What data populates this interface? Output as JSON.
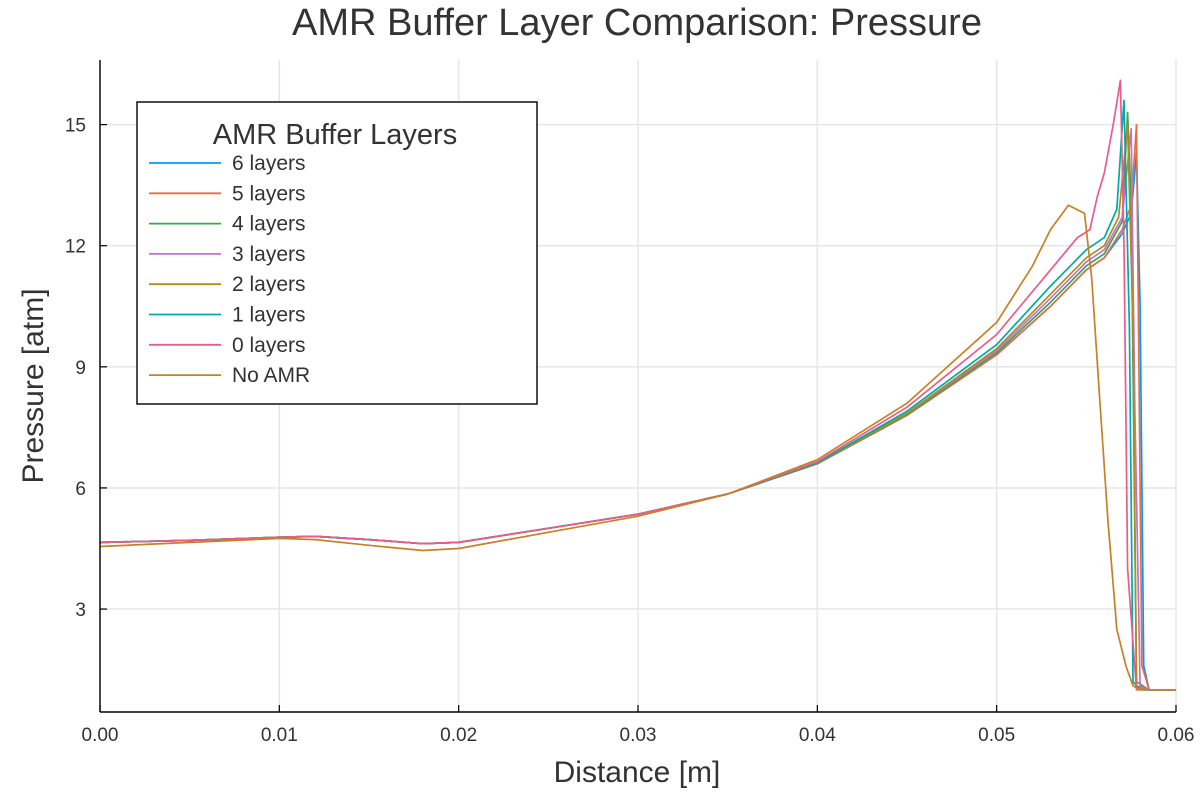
{
  "chart_data": {
    "type": "line",
    "title": "AMR Buffer Layer Comparison: Pressure",
    "xlabel": "Distance [m]",
    "ylabel": "Pressure [atm]",
    "xlim": [
      0.0,
      0.06
    ],
    "ylim": [
      0.45,
      16.6
    ],
    "xticks": [
      0.0,
      0.01,
      0.02,
      0.03,
      0.04,
      0.05,
      0.06
    ],
    "xtick_labels": [
      "0.00",
      "0.01",
      "0.02",
      "0.03",
      "0.04",
      "0.05",
      "0.06"
    ],
    "yticks": [
      3,
      6,
      9,
      12,
      15
    ],
    "ytick_labels": [
      "3",
      "6",
      "9",
      "12",
      "15"
    ],
    "grid": true,
    "legend": {
      "title": "AMR Buffer Layers",
      "placement": "top-left"
    },
    "series": [
      {
        "name": "6 layers",
        "color": "#009AFA",
        "x": [
          0.0,
          0.005,
          0.01,
          0.012,
          0.015,
          0.018,
          0.02,
          0.025,
          0.03,
          0.035,
          0.04,
          0.045,
          0.05,
          0.053,
          0.055,
          0.056,
          0.057,
          0.0575,
          0.0578,
          0.058,
          0.0582,
          0.0585,
          0.06
        ],
        "y": [
          4.65,
          4.7,
          4.78,
          4.8,
          4.72,
          4.62,
          4.65,
          5.0,
          5.35,
          5.85,
          6.6,
          7.8,
          9.3,
          10.5,
          11.4,
          11.7,
          12.3,
          12.8,
          14.3,
          10.5,
          1.6,
          1.0,
          1.0
        ]
      },
      {
        "name": "5 layers",
        "color": "#E36F47",
        "x": [
          0.0,
          0.005,
          0.01,
          0.012,
          0.015,
          0.018,
          0.02,
          0.025,
          0.03,
          0.035,
          0.04,
          0.045,
          0.05,
          0.053,
          0.055,
          0.056,
          0.057,
          0.0575,
          0.0578,
          0.0581,
          0.0585,
          0.06
        ],
        "y": [
          4.65,
          4.7,
          4.78,
          4.8,
          4.72,
          4.62,
          4.65,
          5.0,
          5.35,
          5.85,
          6.6,
          7.8,
          9.3,
          10.5,
          11.4,
          11.7,
          12.4,
          13.0,
          15.0,
          1.6,
          1.0,
          1.0
        ]
      },
      {
        "name": "4 layers",
        "color": "#3EA44E",
        "x": [
          0.0,
          0.005,
          0.01,
          0.012,
          0.015,
          0.018,
          0.02,
          0.025,
          0.03,
          0.035,
          0.04,
          0.045,
          0.05,
          0.053,
          0.055,
          0.056,
          0.057,
          0.0573,
          0.0575,
          0.0578,
          0.0585,
          0.06
        ],
        "y": [
          4.65,
          4.7,
          4.78,
          4.8,
          4.72,
          4.62,
          4.65,
          5.0,
          5.35,
          5.85,
          6.6,
          7.82,
          9.35,
          10.6,
          11.5,
          11.8,
          12.6,
          15.3,
          13.0,
          1.2,
          1.0,
          1.0
        ]
      },
      {
        "name": "3 layers",
        "color": "#C371D2",
        "x": [
          0.0,
          0.005,
          0.01,
          0.012,
          0.015,
          0.018,
          0.02,
          0.025,
          0.03,
          0.035,
          0.04,
          0.045,
          0.05,
          0.053,
          0.055,
          0.056,
          0.057,
          0.0575,
          0.0577,
          0.058,
          0.0585,
          0.06
        ],
        "y": [
          4.65,
          4.7,
          4.78,
          4.8,
          4.72,
          4.62,
          4.65,
          5.0,
          5.35,
          5.85,
          6.6,
          7.85,
          9.4,
          10.7,
          11.6,
          11.9,
          12.7,
          14.9,
          8.0,
          1.1,
          1.0,
          1.0
        ]
      },
      {
        "name": "2 layers",
        "color": "#AC8E18",
        "x": [
          0.0,
          0.005,
          0.01,
          0.012,
          0.015,
          0.018,
          0.02,
          0.025,
          0.03,
          0.035,
          0.04,
          0.045,
          0.05,
          0.053,
          0.055,
          0.056,
          0.0568,
          0.0573,
          0.0576,
          0.0578,
          0.0583,
          0.06
        ],
        "y": [
          4.65,
          4.7,
          4.78,
          4.8,
          4.72,
          4.62,
          4.65,
          5.0,
          5.35,
          5.85,
          6.6,
          7.85,
          9.45,
          10.8,
          11.7,
          12.0,
          12.7,
          15.0,
          10.0,
          1.1,
          1.0,
          1.0
        ]
      },
      {
        "name": "1 layers",
        "color": "#00A9AD",
        "x": [
          0.0,
          0.005,
          0.01,
          0.012,
          0.015,
          0.018,
          0.02,
          0.025,
          0.03,
          0.035,
          0.04,
          0.045,
          0.05,
          0.053,
          0.055,
          0.056,
          0.0567,
          0.0571,
          0.0574,
          0.0576,
          0.058,
          0.06
        ],
        "y": [
          4.65,
          4.7,
          4.78,
          4.8,
          4.72,
          4.62,
          4.65,
          5.0,
          5.35,
          5.85,
          6.62,
          7.9,
          9.55,
          11.0,
          11.9,
          12.2,
          12.9,
          15.6,
          10.0,
          1.2,
          1.0,
          1.0
        ]
      },
      {
        "name": "0 layers",
        "color": "#EB5B8C",
        "x": [
          0.0,
          0.005,
          0.01,
          0.012,
          0.015,
          0.018,
          0.02,
          0.025,
          0.03,
          0.035,
          0.04,
          0.045,
          0.05,
          0.053,
          0.0545,
          0.0552,
          0.0556,
          0.056,
          0.0565,
          0.0569,
          0.0571,
          0.0573,
          0.0578,
          0.06
        ],
        "y": [
          4.65,
          4.7,
          4.78,
          4.8,
          4.72,
          4.62,
          4.65,
          5.0,
          5.35,
          5.85,
          6.65,
          8.0,
          9.8,
          11.4,
          12.2,
          12.4,
          13.2,
          13.8,
          15.0,
          16.1,
          12.0,
          4.0,
          1.0,
          1.0
        ]
      },
      {
        "name": "No AMR",
        "color": "#C68125",
        "x": [
          0.0,
          0.005,
          0.01,
          0.012,
          0.015,
          0.018,
          0.02,
          0.025,
          0.03,
          0.035,
          0.04,
          0.045,
          0.048,
          0.05,
          0.052,
          0.053,
          0.054,
          0.0549,
          0.0553,
          0.0557,
          0.0562,
          0.0567,
          0.0572,
          0.0576,
          0.058,
          0.06
        ],
        "y": [
          4.55,
          4.65,
          4.75,
          4.72,
          4.58,
          4.45,
          4.5,
          4.9,
          5.3,
          5.85,
          6.7,
          8.1,
          9.3,
          10.1,
          11.5,
          12.4,
          13.0,
          12.8,
          11.2,
          8.5,
          5.2,
          2.5,
          1.6,
          1.1,
          1.0,
          1.0
        ]
      }
    ]
  }
}
